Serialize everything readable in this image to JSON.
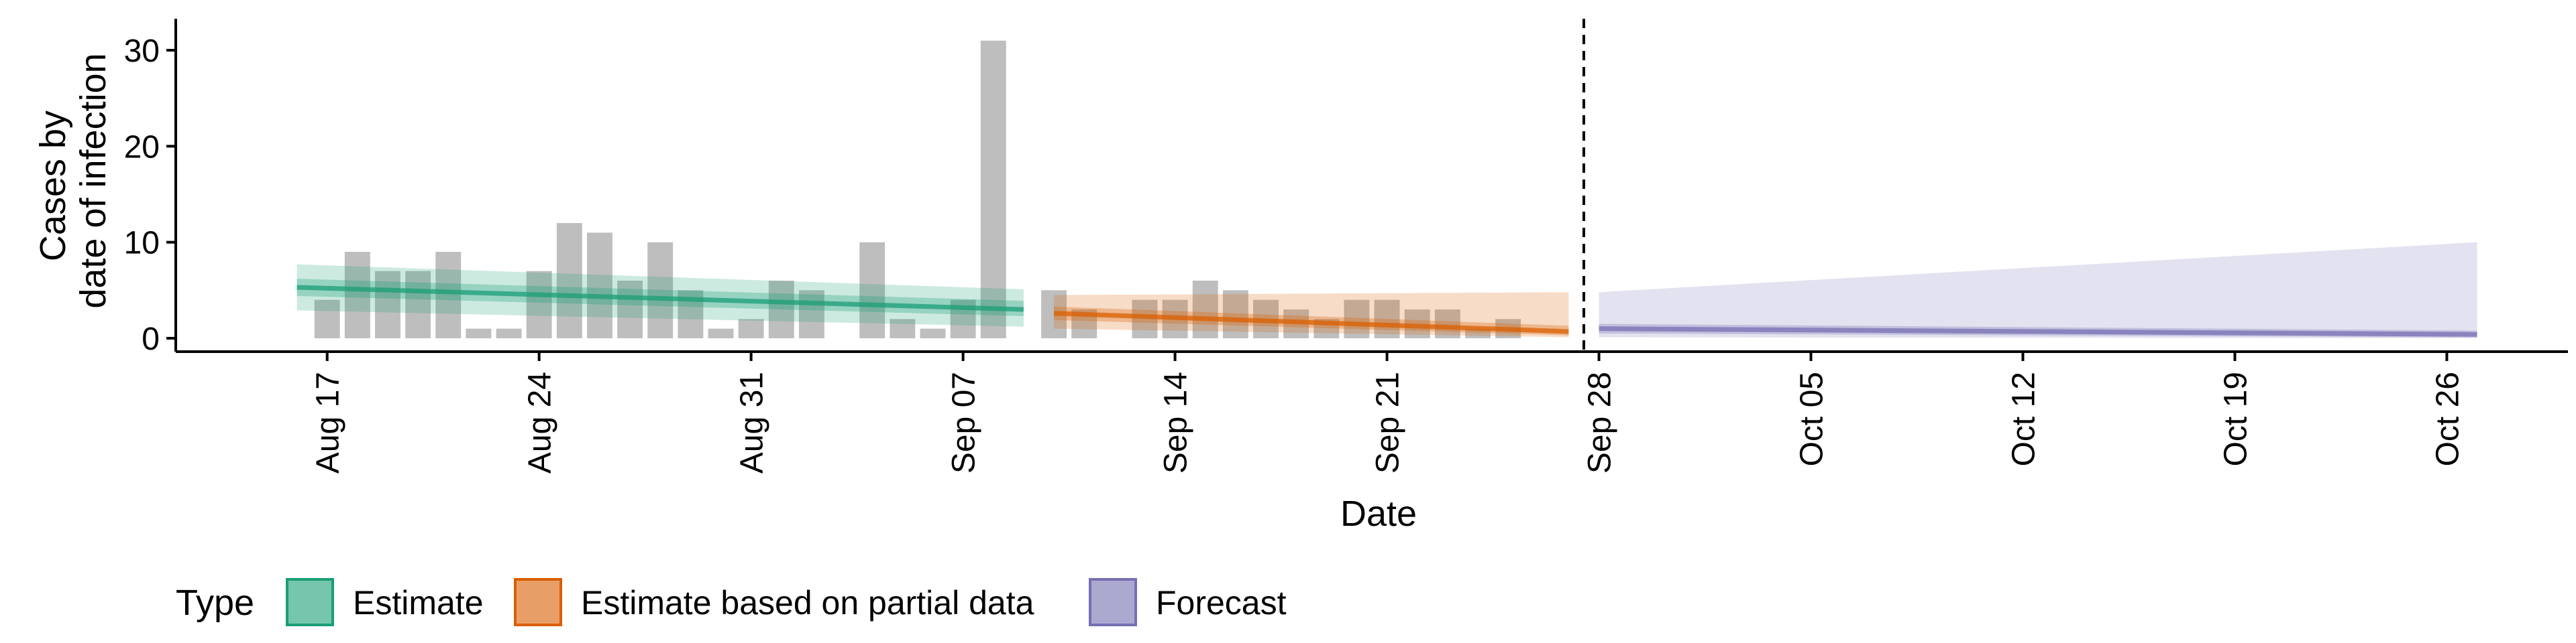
{
  "chart_data": {
    "type": "bar",
    "title": "",
    "xlabel": "Date",
    "ylabel_lines": [
      "Cases by",
      "date of infection"
    ],
    "ylim": [
      0,
      32
    ],
    "yticks": [
      0,
      10,
      20,
      30
    ],
    "xlim": [
      "2020-08-12",
      "2020-10-30"
    ],
    "xticks": [
      {
        "date": "2020-08-17",
        "label": "Aug 17"
      },
      {
        "date": "2020-08-24",
        "label": "Aug 24"
      },
      {
        "date": "2020-08-31",
        "label": "Aug 31"
      },
      {
        "date": "2020-09-07",
        "label": "Sep 07"
      },
      {
        "date": "2020-09-14",
        "label": "Sep 14"
      },
      {
        "date": "2020-09-21",
        "label": "Sep 21"
      },
      {
        "date": "2020-09-28",
        "label": "Sep 28"
      },
      {
        "date": "2020-10-05",
        "label": "Oct 05"
      },
      {
        "date": "2020-10-12",
        "label": "Oct 12"
      },
      {
        "date": "2020-10-19",
        "label": "Oct 19"
      },
      {
        "date": "2020-10-26",
        "label": "Oct 26"
      }
    ],
    "grid": false,
    "vline_date": "2020-09-27",
    "bars": {
      "dates": [
        "2020-08-17",
        "2020-08-18",
        "2020-08-19",
        "2020-08-20",
        "2020-08-21",
        "2020-08-22",
        "2020-08-23",
        "2020-08-24",
        "2020-08-25",
        "2020-08-26",
        "2020-08-27",
        "2020-08-28",
        "2020-08-29",
        "2020-08-30",
        "2020-08-31",
        "2020-09-01",
        "2020-09-02",
        "2020-09-03",
        "2020-09-04",
        "2020-09-05",
        "2020-09-06",
        "2020-09-07",
        "2020-09-08",
        "2020-09-09",
        "2020-09-10",
        "2020-09-11",
        "2020-09-12",
        "2020-09-13",
        "2020-09-14",
        "2020-09-15",
        "2020-09-16",
        "2020-09-17",
        "2020-09-18",
        "2020-09-19",
        "2020-09-20",
        "2020-09-21",
        "2020-09-22",
        "2020-09-23",
        "2020-09-24",
        "2020-09-25",
        "2020-09-26",
        "2020-09-27"
      ],
      "values": [
        4,
        9,
        7,
        7,
        9,
        1,
        1,
        7,
        12,
        11,
        6,
        10,
        5,
        1,
        2,
        6,
        5,
        0,
        10,
        2,
        1,
        4,
        31,
        0,
        5,
        3,
        0,
        4,
        4,
        6,
        5,
        4,
        3,
        2,
        4,
        4,
        3,
        3,
        1,
        2,
        0,
        0
      ],
      "color": "#bebebe"
    },
    "series": [
      {
        "name": "Estimate",
        "color": "#1b9e77",
        "x": [
          "2020-08-16",
          "2020-09-09"
        ],
        "median": [
          5.3,
          3.0
        ],
        "inner_lo": [
          4.4,
          2.3
        ],
        "inner_hi": [
          6.2,
          3.9
        ],
        "outer_lo": [
          2.9,
          1.2
        ],
        "outer_hi": [
          7.7,
          5.1
        ]
      },
      {
        "name": "Estimate based on partial data",
        "color": "#d95f02",
        "x": [
          "2020-09-10",
          "2020-09-27"
        ],
        "median": [
          2.6,
          0.7
        ],
        "inner_lo": [
          1.9,
          0.3
        ],
        "inner_hi": [
          3.3,
          1.3
        ],
        "outer_lo": [
          1.0,
          0.1
        ],
        "outer_hi": [
          4.5,
          4.8
        ]
      },
      {
        "name": "Forecast",
        "color": "#7570b3",
        "x": [
          "2020-09-28",
          "2020-10-27"
        ],
        "median": [
          1.0,
          0.4
        ],
        "inner_lo": [
          0.5,
          0.1
        ],
        "inner_hi": [
          1.5,
          0.8
        ],
        "outer_lo": [
          0.1,
          0.0
        ],
        "outer_hi": [
          4.8,
          10.0
        ]
      }
    ],
    "legend": {
      "title": "Type",
      "placement": "bottom-left",
      "items": [
        "Estimate",
        "Estimate based on partial data",
        "Forecast"
      ]
    }
  }
}
